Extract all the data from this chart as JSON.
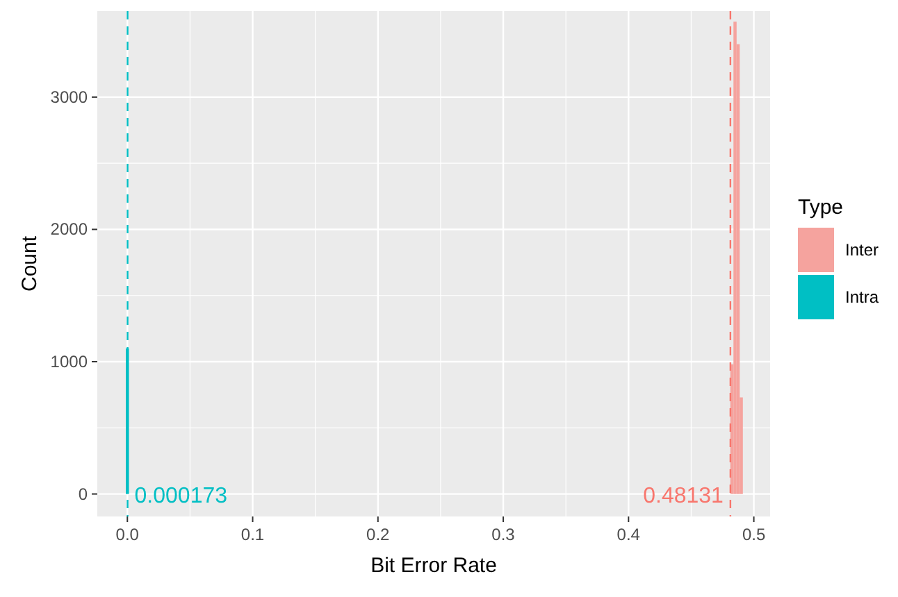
{
  "chart_data": {
    "type": "histogram",
    "xlabel": "Bit Error Rate",
    "ylabel": "Count",
    "legend_title": "Type",
    "legend": "right",
    "grid": true,
    "xlim": [
      -0.024,
      0.513
    ],
    "xticks": [
      {
        "value": 0,
        "label": "0.0"
      },
      {
        "value": 0.1,
        "label": "0.1"
      },
      {
        "value": 0.2,
        "label": "0.2"
      },
      {
        "value": 0.3,
        "label": "0.3"
      },
      {
        "value": 0.4,
        "label": "0.4"
      },
      {
        "value": 0.5,
        "label": "0.5"
      }
    ],
    "ylim": [
      -170,
      3650
    ],
    "yticks": [
      0,
      1000,
      2000,
      3000
    ],
    "bins": [
      -0.00125,
      0.00125,
      0.48125,
      0.48375,
      0.48625,
      0.48875,
      0.49125
    ],
    "series": [
      {
        "name": "Inter",
        "color": "#f5a39e",
        "values": [
          0,
          0,
          980,
          3570,
          3400,
          730
        ]
      },
      {
        "name": "Intra",
        "color": "#00bfc4",
        "values": [
          1100,
          0,
          0,
          0,
          0,
          0
        ]
      }
    ],
    "ref_lines": [
      {
        "axis": "x",
        "value": 0.48131,
        "label": "0.48131",
        "color": "#f8766d",
        "line_style": "dashed"
      },
      {
        "axis": "x",
        "value": 0.000173,
        "label": "0.000173",
        "color": "#00bfc4",
        "line_style": "dashed"
      }
    ]
  }
}
